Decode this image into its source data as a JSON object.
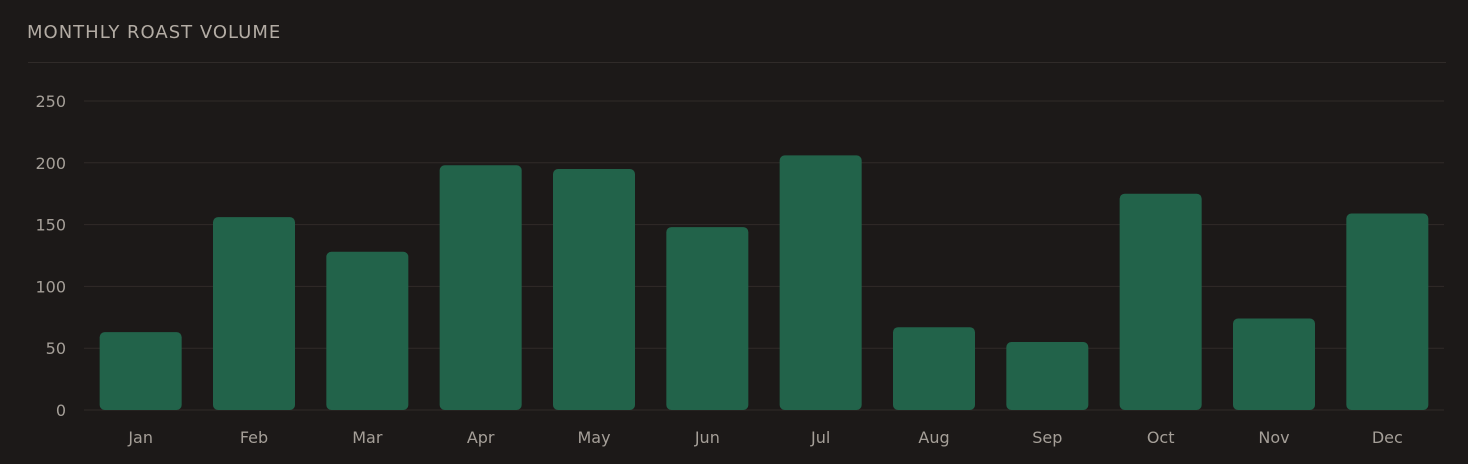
{
  "panel": {
    "title": "MONTHLY ROAST VOLUME"
  },
  "colors": {
    "background": "#1c1918",
    "bar": "#22634a",
    "grid": "#302b29",
    "text": "#a59f98"
  },
  "chart_data": {
    "type": "bar",
    "title": "MONTHLY ROAST VOLUME",
    "xlabel": "",
    "ylabel": "",
    "categories": [
      "Jan",
      "Feb",
      "Mar",
      "Apr",
      "May",
      "Jun",
      "Jul",
      "Aug",
      "Sep",
      "Oct",
      "Nov",
      "Dec"
    ],
    "values": [
      63,
      156,
      128,
      198,
      195,
      148,
      206,
      67,
      55,
      175,
      74,
      159
    ],
    "ylim": [
      0,
      250
    ],
    "yticks": [
      0,
      50,
      100,
      150,
      200,
      250
    ],
    "grid": true,
    "legend": "none"
  }
}
